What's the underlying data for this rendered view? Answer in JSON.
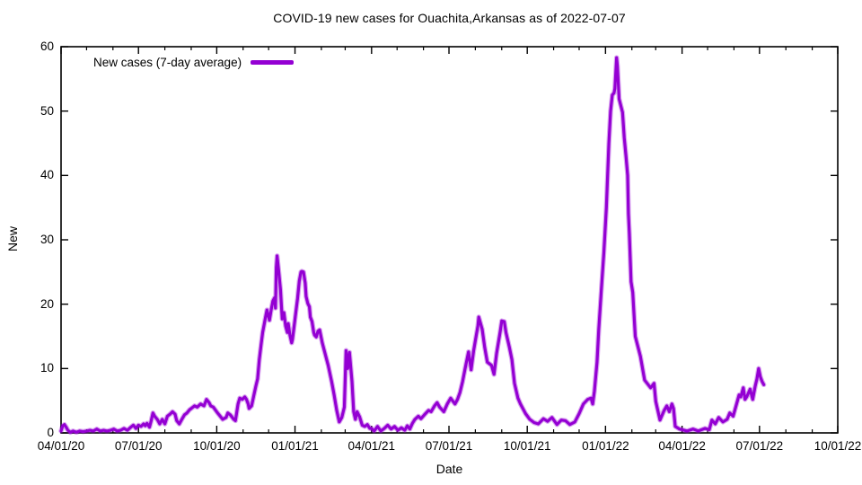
{
  "title": "COVID-19 new cases for Ouachita,Arkansas as of 2022-07-07",
  "legend": {
    "label": "New cases (7-day average)"
  },
  "axes": {
    "x_label": "Date",
    "y_label": "New"
  },
  "chart_data": {
    "type": "line",
    "title": "COVID-19 new cases for Ouachita,Arkansas as of 2022-07-07",
    "xlabel": "Date",
    "ylabel": "New",
    "x_unit": "days since 2020-04-01",
    "x_range_days": [
      0,
      913
    ],
    "ylim": [
      0,
      60
    ],
    "grid": "off",
    "legend_position": "top-left-inside",
    "line_color": "#9400d3",
    "y_ticks": [
      0,
      10,
      20,
      30,
      40,
      50,
      60
    ],
    "x_major_ticks": [
      {
        "day": 0,
        "label": "04/01/20"
      },
      {
        "day": 91,
        "label": "07/01/20"
      },
      {
        "day": 183,
        "label": "10/01/20"
      },
      {
        "day": 275,
        "label": "01/01/21"
      },
      {
        "day": 365,
        "label": "04/01/21"
      },
      {
        "day": 456,
        "label": "07/01/21"
      },
      {
        "day": 548,
        "label": "10/01/21"
      },
      {
        "day": 640,
        "label": "01/01/22"
      },
      {
        "day": 730,
        "label": "04/01/22"
      },
      {
        "day": 821,
        "label": "07/01/22"
      },
      {
        "day": 913,
        "label": "10/01/22"
      }
    ],
    "x_minor_ticks_days": [
      30,
      61,
      122,
      153,
      214,
      244,
      306,
      334,
      395,
      426,
      487,
      518,
      579,
      609,
      671,
      699,
      760,
      791,
      852,
      883
    ],
    "series": [
      {
        "name": "New cases (7-day average)",
        "points": [
          [
            0,
            0.3
          ],
          [
            2,
            1.1
          ],
          [
            4,
            1.3
          ],
          [
            6,
            0.9
          ],
          [
            8,
            0.4
          ],
          [
            11,
            0.1
          ],
          [
            14,
            0.3
          ],
          [
            18,
            0.1
          ],
          [
            22,
            0.3
          ],
          [
            26,
            0.2
          ],
          [
            30,
            0.3
          ],
          [
            34,
            0.4
          ],
          [
            38,
            0.3
          ],
          [
            42,
            0.6
          ],
          [
            46,
            0.3
          ],
          [
            50,
            0.4
          ],
          [
            54,
            0.3
          ],
          [
            58,
            0.4
          ],
          [
            62,
            0.6
          ],
          [
            66,
            0.3
          ],
          [
            70,
            0.4
          ],
          [
            74,
            0.7
          ],
          [
            78,
            0.4
          ],
          [
            82,
            0.9
          ],
          [
            85,
            1.2
          ],
          [
            88,
            0.7
          ],
          [
            91,
            1.2
          ],
          [
            94,
            1.0
          ],
          [
            97,
            1.4
          ],
          [
            99,
            1.1
          ],
          [
            101,
            1.5
          ],
          [
            104,
            0.9
          ],
          [
            106,
            1.9
          ],
          [
            108,
            3.1
          ],
          [
            110,
            2.6
          ],
          [
            113,
            2.1
          ],
          [
            116,
            1.4
          ],
          [
            119,
            2.1
          ],
          [
            122,
            1.4
          ],
          [
            125,
            2.6
          ],
          [
            128,
            2.9
          ],
          [
            131,
            3.3
          ],
          [
            134,
            2.9
          ],
          [
            136,
            1.9
          ],
          [
            139,
            1.4
          ],
          [
            142,
            2.1
          ],
          [
            145,
            2.8
          ],
          [
            148,
            3.1
          ],
          [
            151,
            3.6
          ],
          [
            153,
            3.8
          ],
          [
            157,
            4.2
          ],
          [
            160,
            4.0
          ],
          [
            164,
            4.5
          ],
          [
            168,
            4.2
          ],
          [
            171,
            5.2
          ],
          [
            174,
            4.7
          ],
          [
            176,
            4.2
          ],
          [
            179,
            4.0
          ],
          [
            184,
            3.1
          ],
          [
            187,
            2.6
          ],
          [
            190,
            2.1
          ],
          [
            194,
            2.4
          ],
          [
            196,
            3.1
          ],
          [
            199,
            2.8
          ],
          [
            203,
            2.1
          ],
          [
            205,
            1.9
          ],
          [
            208,
            4.5
          ],
          [
            210,
            5.4
          ],
          [
            213,
            5.2
          ],
          [
            216,
            5.6
          ],
          [
            218,
            5.2
          ],
          [
            220,
            4.5
          ],
          [
            221,
            3.8
          ],
          [
            224,
            4.2
          ],
          [
            227,
            6.1
          ],
          [
            229,
            7.3
          ],
          [
            231,
            8.4
          ],
          [
            233,
            11.4
          ],
          [
            235,
            13.5
          ],
          [
            237,
            15.6
          ],
          [
            239,
            17.0
          ],
          [
            241,
            18.4
          ],
          [
            242,
            19.1
          ],
          [
            244,
            18.0
          ],
          [
            245,
            17.5
          ],
          [
            247,
            19.1
          ],
          [
            249,
            20.5
          ],
          [
            251,
            21.0
          ],
          [
            252,
            19.4
          ],
          [
            253,
            25.7
          ],
          [
            254,
            27.5
          ],
          [
            256,
            25.0
          ],
          [
            258,
            22.2
          ],
          [
            259,
            19.8
          ],
          [
            260,
            17.7
          ],
          [
            262,
            18.7
          ],
          [
            264,
            16.6
          ],
          [
            266,
            15.6
          ],
          [
            267,
            17.0
          ],
          [
            269,
            15.2
          ],
          [
            271,
            14.0
          ],
          [
            272,
            14.5
          ],
          [
            274,
            16.6
          ],
          [
            276,
            18.8
          ],
          [
            278,
            20.9
          ],
          [
            280,
            23.6
          ],
          [
            282,
            25.0
          ],
          [
            283,
            25.1
          ],
          [
            285,
            25.0
          ],
          [
            287,
            23.3
          ],
          [
            288,
            21.2
          ],
          [
            290,
            20.1
          ],
          [
            292,
            19.6
          ],
          [
            293,
            18.0
          ],
          [
            295,
            17.3
          ],
          [
            297,
            15.6
          ],
          [
            298,
            15.2
          ],
          [
            300,
            14.9
          ],
          [
            302,
            15.8
          ],
          [
            304,
            16.0
          ],
          [
            307,
            14.0
          ],
          [
            310,
            12.5
          ],
          [
            314,
            10.5
          ],
          [
            318,
            8.0
          ],
          [
            321,
            5.9
          ],
          [
            324,
            3.5
          ],
          [
            327,
            1.7
          ],
          [
            330,
            2.4
          ],
          [
            333,
            4.0
          ],
          [
            335,
            12.8
          ],
          [
            337,
            10.0
          ],
          [
            339,
            12.5
          ],
          [
            342,
            8.0
          ],
          [
            344,
            3.3
          ],
          [
            346,
            2.1
          ],
          [
            348,
            3.3
          ],
          [
            351,
            2.5
          ],
          [
            354,
            1.2
          ],
          [
            357,
            1.0
          ],
          [
            360,
            1.3
          ],
          [
            363,
            0.7
          ],
          [
            365,
            0.7
          ],
          [
            368,
            0.3
          ],
          [
            372,
            1.0
          ],
          [
            376,
            0.3
          ],
          [
            380,
            0.7
          ],
          [
            384,
            1.2
          ],
          [
            388,
            0.6
          ],
          [
            392,
            1.0
          ],
          [
            396,
            0.4
          ],
          [
            400,
            0.8
          ],
          [
            404,
            0.4
          ],
          [
            407,
            1.1
          ],
          [
            410,
            0.6
          ],
          [
            413,
            1.5
          ],
          [
            416,
            2.1
          ],
          [
            420,
            2.6
          ],
          [
            423,
            2.2
          ],
          [
            427,
            2.8
          ],
          [
            432,
            3.5
          ],
          [
            435,
            3.3
          ],
          [
            439,
            4.2
          ],
          [
            442,
            4.7
          ],
          [
            445,
            4.0
          ],
          [
            450,
            3.3
          ],
          [
            454,
            4.5
          ],
          [
            458,
            5.4
          ],
          [
            463,
            4.5
          ],
          [
            466,
            5.2
          ],
          [
            469,
            6.3
          ],
          [
            472,
            8.0
          ],
          [
            475,
            10.0
          ],
          [
            479,
            12.6
          ],
          [
            482,
            9.8
          ],
          [
            485,
            12.8
          ],
          [
            490,
            16.6
          ],
          [
            491,
            18.0
          ],
          [
            495,
            16.1
          ],
          [
            498,
            13.3
          ],
          [
            501,
            11.0
          ],
          [
            506,
            10.5
          ],
          [
            509,
            9.1
          ],
          [
            512,
            12.4
          ],
          [
            516,
            15.6
          ],
          [
            518,
            17.4
          ],
          [
            521,
            17.3
          ],
          [
            523,
            15.6
          ],
          [
            527,
            13.3
          ],
          [
            530,
            11.4
          ],
          [
            533,
            7.7
          ],
          [
            537,
            5.4
          ],
          [
            540,
            4.5
          ],
          [
            546,
            3.0
          ],
          [
            551,
            2.1
          ],
          [
            556,
            1.6
          ],
          [
            561,
            1.4
          ],
          [
            567,
            2.2
          ],
          [
            572,
            1.8
          ],
          [
            577,
            2.4
          ],
          [
            583,
            1.3
          ],
          [
            588,
            2.0
          ],
          [
            593,
            1.9
          ],
          [
            598,
            1.3
          ],
          [
            604,
            1.7
          ],
          [
            609,
            3.0
          ],
          [
            614,
            4.5
          ],
          [
            619,
            5.2
          ],
          [
            623,
            5.4
          ],
          [
            625,
            4.5
          ],
          [
            627,
            6.5
          ],
          [
            630,
            11.0
          ],
          [
            632,
            16.0
          ],
          [
            635,
            22.0
          ],
          [
            638,
            28.0
          ],
          [
            641,
            35.0
          ],
          [
            644,
            45.0
          ],
          [
            646,
            50.0
          ],
          [
            648,
            52.5
          ],
          [
            650,
            52.8
          ],
          [
            651,
            53.5
          ],
          [
            653,
            58.3
          ],
          [
            654,
            57.0
          ],
          [
            656,
            51.9
          ],
          [
            660,
            49.8
          ],
          [
            662,
            45.9
          ],
          [
            664,
            43.1
          ],
          [
            666,
            40.0
          ],
          [
            667,
            34.0
          ],
          [
            668,
            31.0
          ],
          [
            670,
            23.5
          ],
          [
            672,
            21.8
          ],
          [
            675,
            15.0
          ],
          [
            681,
            11.9
          ],
          [
            686,
            8.2
          ],
          [
            693,
            7.0
          ],
          [
            697,
            7.7
          ],
          [
            699,
            4.9
          ],
          [
            704,
            2.0
          ],
          [
            709,
            3.5
          ],
          [
            712,
            4.2
          ],
          [
            715,
            3.3
          ],
          [
            718,
            4.5
          ],
          [
            720,
            3.8
          ],
          [
            722,
            1.0
          ],
          [
            727,
            0.6
          ],
          [
            736,
            0.3
          ],
          [
            743,
            0.6
          ],
          [
            749,
            0.3
          ],
          [
            757,
            0.7
          ],
          [
            762,
            0.5
          ],
          [
            765,
            2.0
          ],
          [
            769,
            1.4
          ],
          [
            773,
            2.4
          ],
          [
            778,
            1.7
          ],
          [
            783,
            2.1
          ],
          [
            786,
            3.1
          ],
          [
            790,
            2.6
          ],
          [
            794,
            4.5
          ],
          [
            797,
            5.9
          ],
          [
            799,
            5.6
          ],
          [
            802,
            7.0
          ],
          [
            804,
            5.2
          ],
          [
            806,
            5.6
          ],
          [
            810,
            6.8
          ],
          [
            813,
            5.2
          ],
          [
            816,
            7.3
          ],
          [
            818,
            8.4
          ],
          [
            820,
            10.0
          ],
          [
            822,
            8.7
          ],
          [
            824,
            8.0
          ],
          [
            826,
            7.5
          ]
        ]
      }
    ]
  }
}
